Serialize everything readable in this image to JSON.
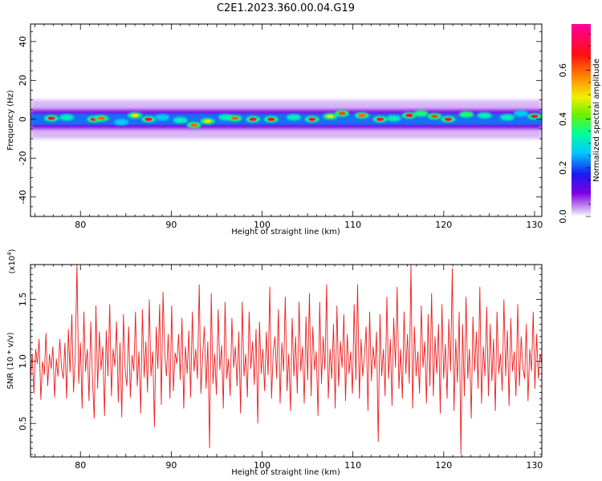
{
  "title": "C2E1.2023.360.00.04.G19",
  "colors": {
    "snr_line": "#ee1c1c",
    "colormap": [
      "#ffffff",
      "#c89cf2",
      "#7000e8",
      "#1a1af0",
      "#00c8ff",
      "#00ff9c",
      "#6cf000",
      "#f0f000",
      "#ff8c00",
      "#ff1010",
      "#ff00a0"
    ]
  },
  "chart_data": [
    {
      "type": "heatmap",
      "title": "C2E1.2023.360.00.04.G19",
      "xlabel": "Height of straight line (km)",
      "ylabel": "Frequency (Hz)",
      "xlim": [
        74.5,
        130.8
      ],
      "ylim": [
        -50,
        49
      ],
      "xticks": [
        80,
        90,
        100,
        110,
        120,
        130
      ],
      "yticks": [
        -40,
        -20,
        0,
        20,
        40
      ],
      "colorbar": {
        "label": "Normalized spectral amplitude",
        "range": [
          0.0,
          0.79
        ],
        "ticks": [
          0.0,
          0.2,
          0.4,
          0.6
        ]
      },
      "band": {
        "center_hz": 0,
        "core_halfwidth_hz": 3,
        "halo_halfwidth_hz": 10
      },
      "peaks": [
        {
          "x": 76.8,
          "y": 0.5,
          "v": 0.72
        },
        {
          "x": 78.5,
          "y": 1.0,
          "v": 0.35
        },
        {
          "x": 81.5,
          "y": 0.0,
          "v": 0.74
        },
        {
          "x": 82.3,
          "y": 0.5,
          "v": 0.6
        },
        {
          "x": 84.5,
          "y": -1.5,
          "v": 0.3
        },
        {
          "x": 86.0,
          "y": 2.0,
          "v": 0.5
        },
        {
          "x": 87.5,
          "y": 0.0,
          "v": 0.72
        },
        {
          "x": 89.0,
          "y": 1.0,
          "v": 0.3
        },
        {
          "x": 91.0,
          "y": -0.5,
          "v": 0.35
        },
        {
          "x": 92.5,
          "y": -3.0,
          "v": 0.6
        },
        {
          "x": 94.0,
          "y": -1.0,
          "v": 0.5
        },
        {
          "x": 96.0,
          "y": 1.0,
          "v": 0.35
        },
        {
          "x": 97.0,
          "y": 0.5,
          "v": 0.6
        },
        {
          "x": 99.0,
          "y": 0.0,
          "v": 0.74
        },
        {
          "x": 101.0,
          "y": 0.0,
          "v": 0.7
        },
        {
          "x": 103.5,
          "y": 1.0,
          "v": 0.35
        },
        {
          "x": 105.5,
          "y": 0.0,
          "v": 0.74
        },
        {
          "x": 107.5,
          "y": 1.5,
          "v": 0.5
        },
        {
          "x": 108.8,
          "y": 3.0,
          "v": 0.62
        },
        {
          "x": 111.0,
          "y": 2.0,
          "v": 0.6
        },
        {
          "x": 113.0,
          "y": 0.0,
          "v": 0.72
        },
        {
          "x": 114.5,
          "y": 0.5,
          "v": 0.35
        },
        {
          "x": 116.2,
          "y": 2.0,
          "v": 0.7
        },
        {
          "x": 117.5,
          "y": 3.0,
          "v": 0.4
        },
        {
          "x": 119.0,
          "y": 1.5,
          "v": 0.62
        },
        {
          "x": 120.5,
          "y": 0.0,
          "v": 0.72
        },
        {
          "x": 122.5,
          "y": 2.5,
          "v": 0.4
        },
        {
          "x": 124.5,
          "y": 2.0,
          "v": 0.35
        },
        {
          "x": 127.0,
          "y": 1.0,
          "v": 0.35
        },
        {
          "x": 128.5,
          "y": 3.0,
          "v": 0.3
        },
        {
          "x": 130.0,
          "y": 1.5,
          "v": 0.74
        }
      ]
    },
    {
      "type": "line",
      "xlabel": "Height of straight line (km)",
      "ylabel": "SNR (10 * v/v)",
      "y_multiplier_label": "(x10",
      "y_multiplier_exponent": "4",
      "y_multiplier_close": ")",
      "xlim": [
        74.5,
        130.8
      ],
      "ylim": [
        0.23,
        1.78
      ],
      "xticks": [
        80,
        90,
        100,
        110,
        120,
        130
      ],
      "yticks": [
        0.5,
        1.0,
        1.5
      ],
      "series": [
        {
          "x_start": 74.5,
          "x_end": 130.8,
          "values": [
            0.85,
            1.06,
            0.74,
            1.1,
            0.98,
            1.18,
            0.69,
            1.0,
            0.89,
            1.23,
            0.8,
            1.06,
            0.94,
            1.12,
            0.71,
            1.02,
            0.88,
            1.18,
            0.95,
            0.86,
            1.15,
            0.7,
            1.26,
            0.91,
            1.38,
            0.75,
            1.05,
            1.78,
            0.82,
            1.15,
            0.62,
            1.4,
            0.92,
            1.1,
            0.68,
            1.32,
            0.86,
            0.54,
            1.45,
            0.78,
            1.24,
            0.93,
            1.12,
            0.56,
            1.25,
            0.88,
            1.46,
            0.72,
            1.1,
            0.96,
            1.32,
            0.67,
            1.15,
            0.55,
            1.38,
            0.92,
            0.8,
            1.28,
            0.71,
            1.05,
            0.92,
            1.4,
            0.8,
            1.08,
            0.58,
            1.42,
            0.87,
            1.16,
            0.75,
            1.5,
            0.88,
            1.08,
            0.47,
            1.28,
            0.94,
            1.46,
            0.65,
            1.56,
            1.06,
            0.88,
            1.22,
            0.7,
            1.45,
            0.76,
            1.07,
            0.98,
            1.22,
            0.85,
            1.35,
            0.62,
            1.12,
            0.9,
            1.25,
            0.71,
            1.4,
            0.92,
            1.1,
            0.86,
            1.62,
            0.74,
            1.05,
            1.28,
            0.78,
            1.16,
            0.3,
            1.55,
            0.82,
            1.06,
            0.73,
            1.42,
            0.93,
            1.13,
            0.62,
            1.48,
            0.86,
            1.02,
            0.72,
            1.35,
            0.95,
            1.12,
            0.8,
            1.24,
            0.58,
            1.48,
            0.88,
            1.06,
            0.71,
            1.4,
            0.94,
            1.16,
            0.81,
            1.26,
            0.5,
            1.32,
            0.9,
            1.1,
            0.76,
            1.24,
            0.89,
            1.6,
            0.7,
            1.08,
            1.2,
            0.86,
            1.42,
            0.66,
            1.15,
            0.92,
            1.52,
            0.76,
            1.06,
            0.6,
            1.35,
            0.88,
            1.2,
            0.74,
            1.48,
            0.92,
            1.12,
            0.66,
            1.36,
            0.85,
            1.55,
            0.72,
            1.28,
            0.93,
            1.08,
            0.56,
            1.48,
            0.82,
            1.2,
            0.93,
            1.62,
            0.7,
            1.1,
            0.86,
            1.3,
            0.62,
            1.45,
            0.8,
            1.16,
            0.95,
            1.38,
            0.68,
            1.22,
            0.9,
            1.08,
            0.74,
            1.46,
            0.85,
            1.62,
            0.7,
            1.18,
            0.88,
            1.05,
            1.28,
            0.6,
            1.4,
            0.84,
            1.12,
            0.94,
            1.24,
            0.35,
            1.38,
            0.88,
            1.1,
            0.72,
            1.52,
            0.86,
            1.18,
            0.64,
            1.35,
            0.95,
            1.6,
            0.78,
            1.1,
            0.7,
            1.4,
            0.9,
            1.22,
            0.82,
            1.78,
            0.62,
            1.28,
            0.88,
            1.08,
            0.74,
            1.45,
            0.95,
            1.16,
            0.66,
            1.38,
            0.8,
            1.55,
            0.72,
            1.2,
            0.9,
            1.3,
            0.58,
            1.46,
            0.86,
            1.14,
            0.7,
            1.34,
            0.92,
            1.75,
            0.6,
            1.18,
            0.83,
            1.4,
            0.25,
            1.3,
            0.72,
            1.52,
            0.86,
            1.1,
            0.54,
            1.36,
            0.92,
            1.24,
            0.78,
            1.6,
            0.66,
            1.12,
            0.88,
            1.44,
            0.72,
            1.3,
            0.84,
            1.18,
            0.6,
            1.4,
            0.9,
            1.06,
            0.76,
            1.5,
            0.88,
            1.25,
            0.64,
            1.35,
            0.92,
            1.08,
            0.72,
            1.46,
            0.8,
            1.2,
            0.95,
            0.86,
            1.3,
            0.68,
            1.1,
            0.92,
            1.4,
            0.78,
            1.22,
            0.86,
            1.06,
            0.98
          ]
        }
      ]
    }
  ]
}
